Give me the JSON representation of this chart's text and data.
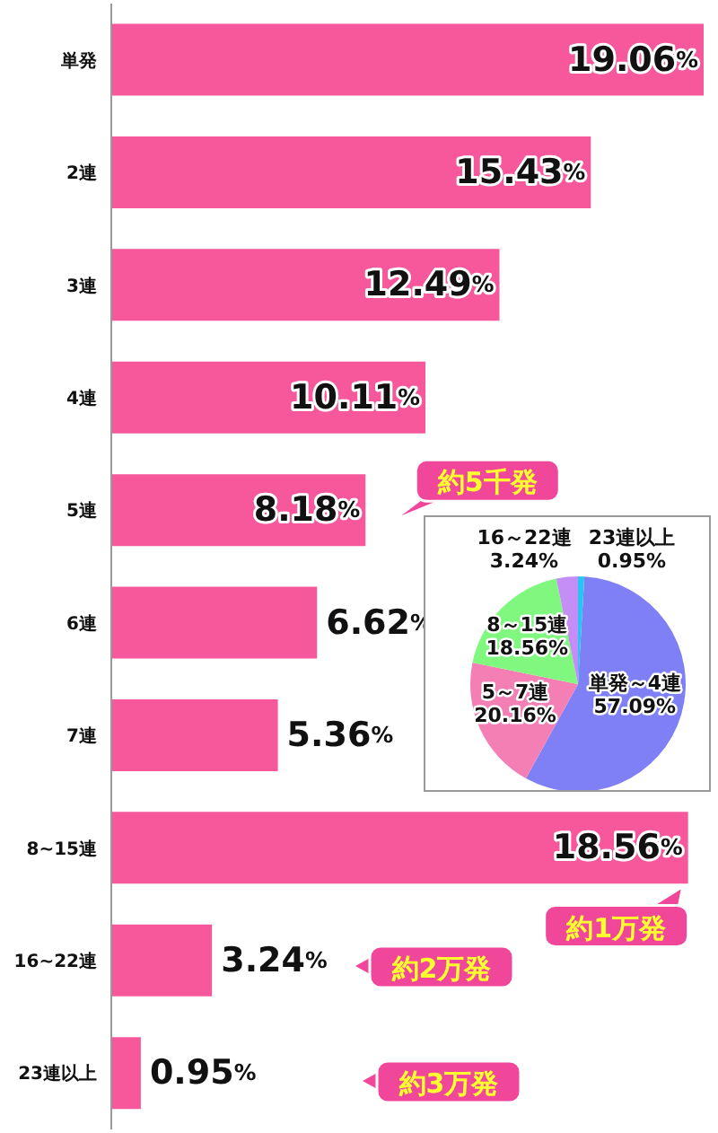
{
  "chart_data": [
    {
      "type": "bar",
      "orientation": "horizontal",
      "categories": [
        "単発",
        "2連",
        "3連",
        "4連",
        "5連",
        "6連",
        "7連",
        "8~15連",
        "16~22連",
        "23連以上"
      ],
      "values": [
        19.06,
        15.43,
        12.49,
        10.11,
        8.18,
        6.62,
        5.36,
        18.56,
        3.24,
        0.95
      ],
      "value_labels": [
        "19.06%",
        "15.43%",
        "12.49%",
        "10.11%",
        "8.18%",
        "6.62%",
        "5.36%",
        "18.56%",
        "3.24%",
        "0.95%"
      ],
      "color": "#f7589c",
      "tick_labels": "y",
      "annotations": [
        {
          "text": "約5千発",
          "x": 8.18,
          "y": "5連"
        },
        {
          "text": "約1万発",
          "x": 18.56,
          "y": "8~15連"
        },
        "約2万発",
        "約3万発"
      ]
    },
    {
      "type": "pie",
      "categories": [
        "単発～4連",
        "5～7連",
        "8～15連",
        "16～22連",
        "23連以上"
      ],
      "values": [
        57.09,
        20.16,
        18.56,
        3.24,
        0.95
      ],
      "value_labels": [
        "57.09%",
        "20.16%",
        "18.56%",
        "3.24%",
        "0.95%"
      ],
      "colors": [
        "#8080f6",
        "#f47fb5",
        "#80f880",
        "#c58ef6",
        "#28c4f4"
      ]
    }
  ]
}
